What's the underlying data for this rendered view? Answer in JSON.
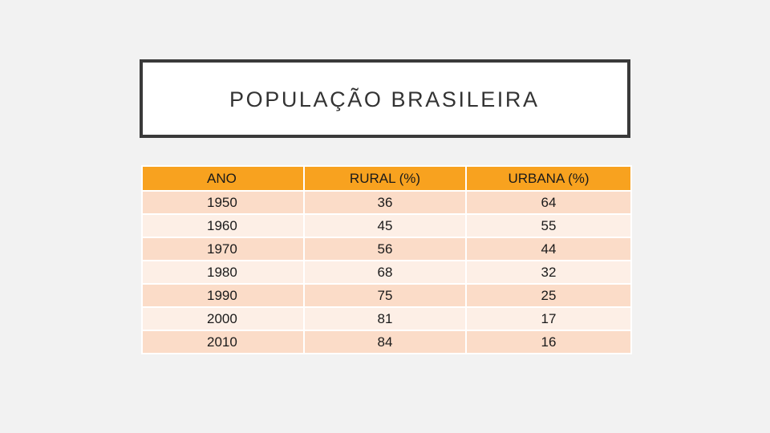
{
  "title": "POPULAÇÃO BRASILEIRA",
  "table": {
    "headers": [
      "ANO",
      "RURAL (%)",
      "URBANA (%)"
    ],
    "rows": [
      [
        "1950",
        "36",
        "64"
      ],
      [
        "1960",
        "45",
        "55"
      ],
      [
        "1970",
        "56",
        "44"
      ],
      [
        "1980",
        "68",
        "32"
      ],
      [
        "1990",
        "75",
        "25"
      ],
      [
        "2000",
        "81",
        "17"
      ],
      [
        "2010",
        "84",
        "16"
      ]
    ]
  },
  "colors": {
    "header": "#f8a21f",
    "row_dark": "#fbdcc8",
    "row_light": "#fdefe6",
    "title_border": "#3a3a3a"
  }
}
